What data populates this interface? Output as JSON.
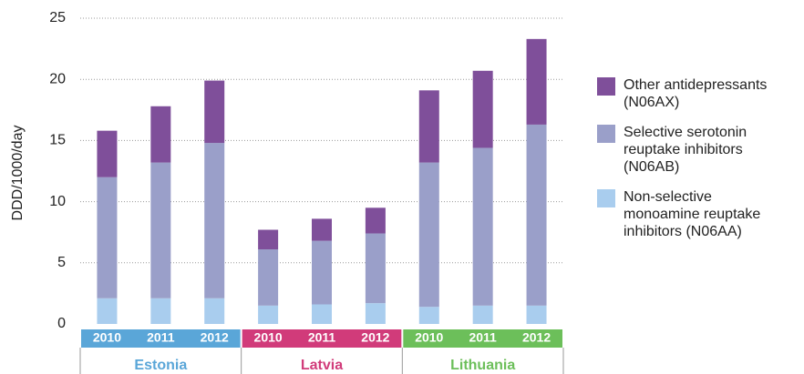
{
  "chart_data": {
    "type": "stacked_bar",
    "y_axis_label": "DDD/1000/day",
    "ylim": [
      0,
      25
    ],
    "yticks": [
      0,
      5,
      10,
      15,
      20,
      25
    ],
    "grid": true,
    "groups": [
      {
        "name": "Estonia",
        "color": "#5aa6d8",
        "categories": [
          "2010",
          "2011",
          "2012"
        ]
      },
      {
        "name": "Latvia",
        "color": "#d13b7a",
        "categories": [
          "2010",
          "2011",
          "2012"
        ]
      },
      {
        "name": "Lithuania",
        "color": "#6cbf5a",
        "categories": [
          "2010",
          "2011",
          "2012"
        ]
      }
    ],
    "series": [
      {
        "name": "Non-selective monoamine reuptake inhibitors (N06AA)",
        "color": "#a9cdee",
        "values": [
          2.1,
          2.1,
          2.1,
          1.5,
          1.6,
          1.7,
          1.4,
          1.5,
          1.5
        ]
      },
      {
        "name": "Selective serotonin reuptake inhibitors (N06AB)",
        "color": "#9a9fc9",
        "values": [
          9.9,
          11.1,
          12.7,
          4.6,
          5.2,
          5.7,
          11.8,
          12.9,
          14.8
        ]
      },
      {
        "name": "Other antidepressants (N06AX)",
        "color": "#7f4f9a",
        "values": [
          3.8,
          4.6,
          5.1,
          1.6,
          1.8,
          2.1,
          5.9,
          6.3,
          7.0
        ]
      }
    ],
    "legend_position": "right"
  }
}
